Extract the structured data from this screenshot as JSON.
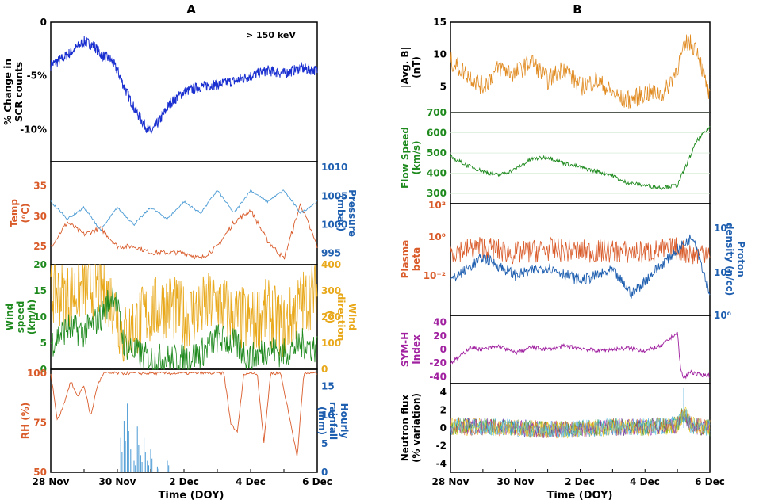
{
  "colors": {
    "blue": "#1a2fd0",
    "orange": "#d95b2a",
    "lightblue": "#4a9ad4",
    "green": "#1e8a1e",
    "gold": "#e8a81a",
    "purple": "#a020a0",
    "bmag": "#e08a20",
    "axisblue": "#1f5fb0"
  },
  "panelA": {
    "label": "A",
    "xlabel": "Time (DOY)",
    "xticks": [
      "28 Nov",
      "30 Nov",
      "2 Dec",
      "4 Dec",
      "6 Dec"
    ]
  },
  "panelB": {
    "label": "B",
    "xlabel": "Time (DOY)",
    "xticks": [
      "28 Nov",
      "30 Nov",
      "2 Dec",
      "4 Dec",
      "6 Dec"
    ]
  },
  "chart_data": [
    {
      "id": "scr",
      "type": "line",
      "ylabel": [
        "% Change in",
        "SCR counts"
      ],
      "annotation": "> 150 keV",
      "ylim": [
        -13,
        0
      ],
      "yticks": [
        "0",
        "-5%",
        "-10%"
      ],
      "ytick_values": [
        0,
        -5,
        -10
      ],
      "x": [
        0,
        0.3,
        0.6,
        1.0,
        1.3,
        1.5,
        1.8,
        2.0,
        2.2,
        2.5,
        2.8,
        3.0,
        3.3,
        3.6,
        4.0,
        4.5,
        5.0,
        5.5,
        6.0,
        6.5,
        7.0,
        7.5,
        8.0
      ],
      "values": [
        -4.0,
        -3.5,
        -2.8,
        -1.8,
        -2.2,
        -3.0,
        -3.5,
        -4.5,
        -6.0,
        -8.0,
        -9.5,
        -10.3,
        -9.0,
        -7.5,
        -6.5,
        -6.0,
        -5.8,
        -5.5,
        -5.0,
        -4.5,
        -4.8,
        -4.3,
        -4.5
      ]
    },
    {
      "id": "temp_pressure",
      "type": "line",
      "ylabel_left": [
        "Temp",
        "(⁰C)"
      ],
      "ylabel_right": [
        "Pressure",
        "(mbar)"
      ],
      "left_ylim": [
        22,
        39
      ],
      "left_yticks": [
        25,
        30,
        35
      ],
      "right_ylim": [
        993,
        1011
      ],
      "right_yticks": [
        995,
        1000,
        1005,
        1010
      ],
      "series": [
        {
          "name": "Temp",
          "x": [
            0,
            0.5,
            1.0,
            1.5,
            2.0,
            2.5,
            3.0,
            3.5,
            4.0,
            4.5,
            5.0,
            5.5,
            6.0,
            6.5,
            7.0,
            7.5,
            8.0
          ],
          "values": [
            25,
            29,
            27,
            28,
            25,
            25,
            24,
            24,
            24,
            23,
            25,
            29,
            31,
            26,
            23,
            32,
            25
          ]
        },
        {
          "name": "Pressure",
          "x": [
            0,
            0.5,
            1.0,
            1.5,
            2.0,
            2.5,
            3.0,
            3.5,
            4.0,
            4.5,
            5.0,
            5.5,
            6.0,
            6.5,
            7.0,
            7.5,
            8.0
          ],
          "values": [
            1004,
            1001,
            1003,
            999,
            1003,
            1000,
            1003,
            1001,
            1004,
            1002,
            1006,
            1002,
            1006,
            1004,
            1006,
            1002,
            1004
          ]
        }
      ]
    },
    {
      "id": "wind",
      "type": "line",
      "ylabel_left": [
        "Wind",
        "speed",
        "(km/h)"
      ],
      "ylabel_right": [
        "Wind",
        "direction",
        "(⁰)"
      ],
      "left_ylim": [
        0,
        20
      ],
      "left_yticks": [
        0,
        5,
        10,
        15,
        20
      ],
      "right_ylim": [
        0,
        400
      ],
      "right_yticks": [
        0,
        100,
        200,
        300,
        400
      ],
      "series": [
        {
          "name": "Wind speed",
          "x": [
            0,
            0.5,
            1.0,
            1.5,
            1.9,
            2.2,
            2.6,
            3.0,
            3.5,
            4.0,
            4.5,
            5.0,
            5.5,
            6.0,
            6.5,
            7.0,
            7.5,
            8.0
          ],
          "values": [
            5,
            8,
            7,
            10,
            15,
            5,
            3,
            2,
            2,
            2,
            3,
            6,
            5,
            2,
            4,
            3,
            5,
            4
          ]
        },
        {
          "name": "Wind direction",
          "x": [
            0,
            0.5,
            1.0,
            1.5,
            1.9,
            2.2,
            2.6,
            3.0,
            3.5,
            4.0,
            4.5,
            5.0,
            5.5,
            6.0,
            6.5,
            7.0,
            7.5,
            8.0
          ],
          "values": [
            300,
            280,
            310,
            320,
            250,
            120,
            180,
            220,
            250,
            200,
            230,
            260,
            200,
            180,
            220,
            160,
            250,
            300
          ]
        }
      ]
    },
    {
      "id": "rh_rain",
      "type": "line",
      "ylabel_left": [
        "RH (%)"
      ],
      "ylabel_right": [
        "Hourly",
        "rainfall",
        "(mm)"
      ],
      "left_ylim": [
        50,
        102
      ],
      "left_yticks": [
        50,
        75,
        100
      ],
      "right_ylim": [
        0,
        18
      ],
      "right_yticks": [
        0,
        5,
        10,
        15
      ],
      "series": [
        {
          "name": "RH",
          "x": [
            0,
            0.2,
            0.4,
            0.6,
            0.8,
            1.0,
            1.2,
            1.4,
            1.6,
            1.8,
            2.0,
            5.2,
            5.4,
            5.6,
            5.8,
            6.2,
            6.4,
            6.6,
            6.9,
            7.2,
            7.4,
            7.6,
            8.0
          ],
          "values": [
            100,
            76,
            85,
            96,
            88,
            94,
            78,
            94,
            100,
            100,
            100,
            100,
            75,
            70,
            100,
            100,
            65,
            100,
            100,
            75,
            58,
            100,
            100
          ]
        },
        {
          "name": "Rainfall",
          "x": [
            2.1,
            2.2,
            2.3,
            2.4,
            2.5,
            2.6,
            2.7,
            2.8,
            2.9,
            3.0,
            3.2,
            3.5
          ],
          "values": [
            6,
            9,
            12,
            4,
            2,
            8,
            3,
            6,
            2,
            4,
            1,
            2
          ]
        }
      ]
    },
    {
      "id": "bavg",
      "type": "line",
      "ylabel": [
        "|Avg. B|",
        "(nT)"
      ],
      "ylim": [
        1,
        15
      ],
      "yticks": [
        5,
        10,
        15
      ],
      "x": [
        0,
        0.5,
        1.0,
        1.5,
        2.0,
        2.5,
        3.0,
        3.5,
        4.0,
        4.5,
        5.0,
        5.3,
        5.6,
        6.0,
        6.2,
        6.6,
        7.0,
        7.3,
        7.6,
        8.0
      ],
      "values": [
        9,
        7,
        5,
        8,
        7,
        9,
        6,
        8,
        5,
        6,
        4,
        3,
        3,
        4,
        4,
        4,
        8,
        12,
        11,
        3
      ]
    },
    {
      "id": "flow",
      "type": "line",
      "ylabel": [
        "Flow Speed",
        "(km/s)"
      ],
      "ylim": [
        250,
        700
      ],
      "yticks": [
        300,
        400,
        500,
        600,
        700
      ],
      "x": [
        0,
        0.5,
        1.0,
        1.5,
        2.0,
        2.5,
        3.0,
        3.5,
        4.0,
        4.5,
        5.0,
        5.3,
        5.6,
        6.0,
        6.5,
        7.0,
        7.3,
        7.6,
        8.0
      ],
      "values": [
        480,
        440,
        410,
        390,
        420,
        470,
        480,
        450,
        430,
        410,
        390,
        360,
        350,
        340,
        330,
        340,
        450,
        560,
        630
      ]
    },
    {
      "id": "beta_density",
      "type": "line",
      "ylabel_left": [
        "Plasma",
        "beta"
      ],
      "ylabel_right": [
        "Proton",
        "density (n/cc)"
      ],
      "left_yticks": [
        "10⁻²",
        "10⁰",
        "10²"
      ],
      "right_yticks": [
        "10⁰",
        "10¹",
        "10²"
      ],
      "series": [
        {
          "name": "Plasma beta",
          "x": [
            0,
            1,
            2,
            3,
            4,
            5,
            5.6,
            6,
            7,
            7.5,
            8
          ],
          "values": [
            1.0,
            1.5,
            0.8,
            1.2,
            1.0,
            1.0,
            0.9,
            0.9,
            1.3,
            0.7,
            1.2
          ]
        },
        {
          "name": "Proton density",
          "x": [
            0,
            1,
            2,
            3,
            4,
            5,
            5.6,
            6,
            7,
            7.5,
            8
          ],
          "values": [
            6,
            20,
            8,
            12,
            6,
            10,
            3,
            6,
            30,
            60,
            3
          ]
        }
      ]
    },
    {
      "id": "symh",
      "type": "line",
      "ylabel": [
        "SYM-H",
        "Index"
      ],
      "ylim": [
        -50,
        50
      ],
      "yticks": [
        -40,
        -20,
        0,
        20,
        40
      ],
      "x": [
        0,
        0.3,
        0.6,
        1.0,
        1.5,
        2.0,
        2.5,
        3.0,
        3.5,
        4.0,
        4.5,
        5.0,
        5.5,
        6.0,
        6.5,
        7.0,
        7.1,
        7.2,
        7.4,
        7.6,
        8.0
      ],
      "values": [
        -20,
        -10,
        3,
        0,
        5,
        -5,
        3,
        0,
        5,
        2,
        -2,
        0,
        2,
        -2,
        5,
        25,
        -30,
        -43,
        -32,
        -37,
        -38
      ]
    },
    {
      "id": "neutron",
      "type": "line",
      "ylabel": [
        "Neutron flux",
        "(% variation)"
      ],
      "ylim": [
        -5,
        5
      ],
      "yticks": [
        -4,
        -2,
        0,
        2,
        4
      ],
      "x": [
        0,
        1,
        2,
        3,
        4,
        5,
        6,
        7,
        7.2,
        7.4,
        8
      ],
      "values": [
        0.5,
        0.3,
        0.0,
        -0.5,
        -0.3,
        0.2,
        0.3,
        0.8,
        4.5,
        0.8,
        0.0
      ]
    }
  ]
}
